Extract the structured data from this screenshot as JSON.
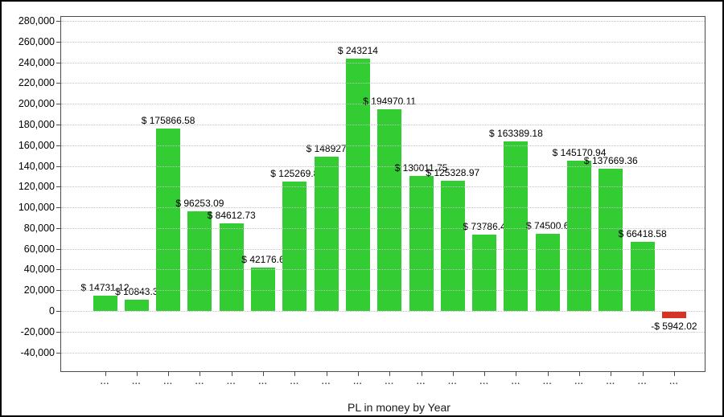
{
  "window": {
    "background_color": "#ffffff",
    "frame_color": "#000000"
  },
  "chart_data": {
    "type": "bar",
    "title": "PL in money by Year",
    "title_position": "bottom-center",
    "legend": "none",
    "grid": "horizontal-dotted",
    "categories": [
      "...",
      "...",
      "...",
      "...",
      "...",
      "...",
      "...",
      "...",
      "...",
      "...",
      "...",
      "...",
      "...",
      "...",
      "...",
      "...",
      "...",
      "...",
      "..."
    ],
    "values": [
      14731.12,
      10843.3,
      175866.58,
      96253.09,
      84612.73,
      42176.6,
      125269.8,
      148927,
      243214,
      194970.11,
      130011.75,
      125328.97,
      73786.4,
      163389.18,
      74500.6,
      145170.94,
      137669.36,
      66418.58,
      -5942.02
    ],
    "bar_labels": [
      "$ 14731.12",
      "$ 10843.3",
      "$ 175866.58",
      "$ 96253.09",
      "$ 84612.73",
      "$ 42176.6",
      "$ 125269.8",
      "$ 148927",
      "$ 243214",
      "$ 194970.11",
      "$ 130011.75",
      "$ 125328.97",
      "$ 73786.4",
      "$ 163389.18",
      "$ 74500.6",
      "$ 145170.94",
      "$ 137669.36",
      "$ 66418.58",
      "-$ 5942.02"
    ],
    "y_ticks": [
      280000,
      260000,
      240000,
      220000,
      200000,
      180000,
      160000,
      140000,
      120000,
      100000,
      80000,
      60000,
      40000,
      20000,
      0,
      -20000,
      -40000
    ],
    "y_tick_labels": [
      "280,000",
      "260,000",
      "240,000",
      "220,000",
      "200,000",
      "180,000",
      "160,000",
      "140,000",
      "120,000",
      "100,000",
      "80,000",
      "60,000",
      "40,000",
      "20,000",
      "0",
      "-20,000",
      "-40,000"
    ],
    "ylim": [
      -58900,
      284700
    ],
    "colors": {
      "positive_bar": "#33cc33",
      "negative_bar": "#d63327",
      "gridline": "#c3c3c3",
      "axis": "#4a4a4a",
      "label_text": "#000000"
    }
  }
}
